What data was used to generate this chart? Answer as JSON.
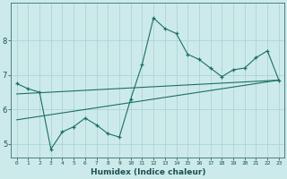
{
  "xlabel": "Humidex (Indice chaleur)",
  "bg_color": "#cdeaea",
  "grid_color": "#add4d4",
  "line_color": "#1a7060",
  "xlim": [
    -0.5,
    23.5
  ],
  "ylim": [
    4.6,
    9.1
  ],
  "yticks": [
    5,
    6,
    7,
    8
  ],
  "xticks": [
    0,
    1,
    2,
    3,
    4,
    5,
    6,
    7,
    8,
    9,
    10,
    11,
    12,
    13,
    14,
    15,
    16,
    17,
    18,
    19,
    20,
    21,
    22,
    23
  ],
  "series1_x": [
    0,
    1,
    2,
    3,
    4,
    5,
    6,
    7,
    8,
    9,
    10,
    11,
    12,
    13,
    14,
    15,
    16,
    17,
    18,
    19,
    20,
    21,
    22,
    23
  ],
  "series1_y": [
    6.75,
    6.6,
    6.5,
    4.85,
    5.35,
    5.5,
    5.75,
    5.55,
    5.3,
    5.2,
    6.3,
    7.3,
    8.65,
    8.35,
    8.2,
    7.6,
    7.45,
    7.2,
    6.95,
    7.15,
    7.2,
    7.5,
    7.7,
    6.85
  ],
  "series2_x": [
    0,
    23
  ],
  "series2_y": [
    5.7,
    6.85
  ],
  "series3_x": [
    0,
    23
  ],
  "series3_y": [
    6.45,
    6.85
  ]
}
